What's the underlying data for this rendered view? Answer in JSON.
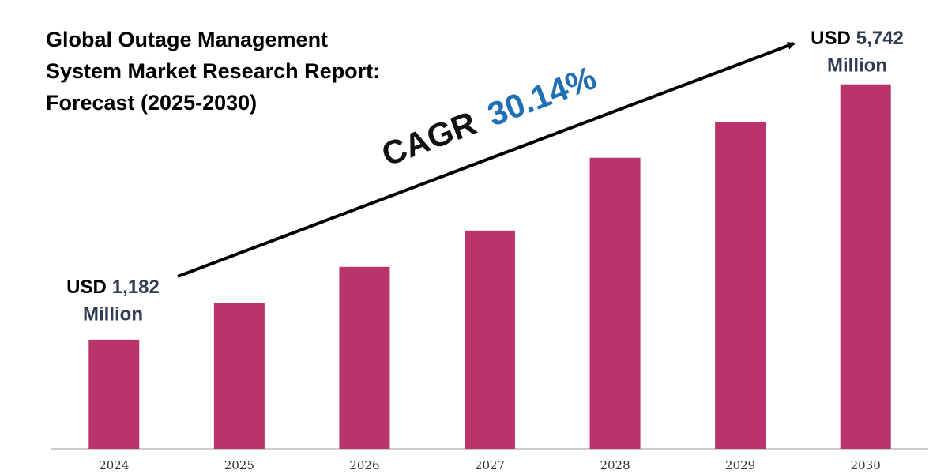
{
  "chart_data": {
    "type": "bar",
    "title": [
      "Global Outage Management",
      "System Market Research Report:",
      "Forecast (2025-2030)"
    ],
    "categories": [
      "2024",
      "2025",
      "2026",
      "2027",
      "2028",
      "2029",
      "2030"
    ],
    "values": [
      1182,
      1831,
      2481,
      3130,
      4429,
      5064,
      5742
    ],
    "value_labels": [
      "1,182",
      null,
      null,
      null,
      null,
      null,
      "5,742"
    ],
    "unit_prefix": "USD",
    "unit_suffix": "Million",
    "cagr_label": "CAGR",
    "cagr_value": "30.14%",
    "color": "#b8346a",
    "ylim": [
      -767,
      6500
    ]
  }
}
